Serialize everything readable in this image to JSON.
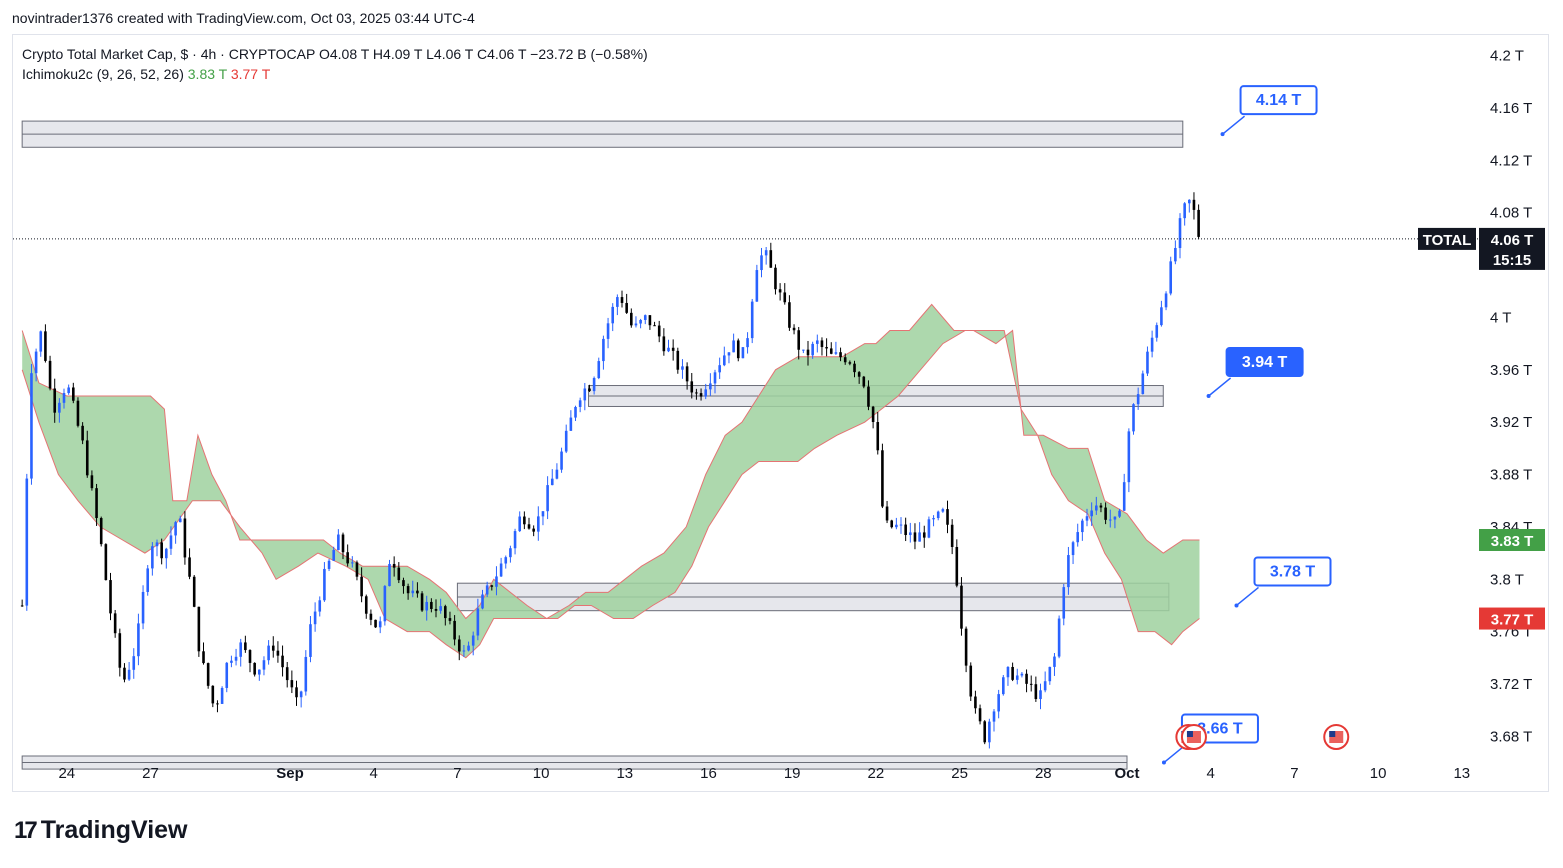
{
  "caption": "novintrader1376 created with TradingView.com, Oct 03, 2025 03:44 UTC-4",
  "legend": {
    "symbol_line": "Crypto Total Market Cap, $ · 4h · CRYPTOCAP",
    "ohlc": "O4.08 T  H4.09 T  L4.06 T  C4.06 T  −23.72 B (−0.58%)",
    "indicator": "Ichimoku2c (9, 26, 52, 26)",
    "indicator_v1": "3.83 T",
    "indicator_v2": "3.77 T"
  },
  "footer": {
    "brand": "TradingView",
    "logo_mark": "17"
  },
  "colors": {
    "up": "#2962ff",
    "down": "#000000",
    "cloud": "#9fd19f",
    "cloud_edge": "#e57373",
    "callout": "#2962ff",
    "zone": "#d1d4dc"
  },
  "chart_data": {
    "type": "candlestick",
    "title": "Crypto Total Market Cap",
    "interval": "4h",
    "y_unit": "T",
    "y_ticks": [
      "4.2 T",
      "4.16 T",
      "4.12 T",
      "4.08 T",
      "4 T",
      "3.96 T",
      "3.92 T",
      "3.88 T",
      "3.84 T",
      "3.8 T",
      "3.76 T",
      "3.72 T",
      "3.68 T"
    ],
    "y_tick_values": [
      4.2,
      4.16,
      4.12,
      4.08,
      4.0,
      3.96,
      3.92,
      3.88,
      3.84,
      3.8,
      3.76,
      3.72,
      3.68
    ],
    "ylim": [
      3.665,
      4.215
    ],
    "x_ticks": [
      {
        "label": "24",
        "day": -8
      },
      {
        "label": "27",
        "day": -5
      },
      {
        "label": "Sep",
        "day": 0
      },
      {
        "label": "4",
        "day": 3
      },
      {
        "label": "7",
        "day": 6
      },
      {
        "label": "10",
        "day": 9
      },
      {
        "label": "13",
        "day": 12
      },
      {
        "label": "16",
        "day": 15
      },
      {
        "label": "19",
        "day": 18
      },
      {
        "label": "22",
        "day": 21
      },
      {
        "label": "25",
        "day": 24
      },
      {
        "label": "28",
        "day": 27
      },
      {
        "label": "Oct",
        "day": 30
      },
      {
        "label": "4",
        "day": 33
      },
      {
        "label": "7",
        "day": 36
      },
      {
        "label": "10",
        "day": 39
      },
      {
        "label": "13",
        "day": 42
      }
    ],
    "price_path": [
      [
        -9.6,
        3.78
      ],
      [
        -9.3,
        3.96
      ],
      [
        -8.9,
        3.99
      ],
      [
        -8.5,
        3.93
      ],
      [
        -8.0,
        3.95
      ],
      [
        -7.4,
        3.9
      ],
      [
        -6.8,
        3.83
      ],
      [
        -6.4,
        3.77
      ],
      [
        -6.0,
        3.72
      ],
      [
        -5.5,
        3.75
      ],
      [
        -5.0,
        3.83
      ],
      [
        -4.5,
        3.82
      ],
      [
        -4.0,
        3.85
      ],
      [
        -3.6,
        3.8
      ],
      [
        -3.2,
        3.74
      ],
      [
        -2.7,
        3.7
      ],
      [
        -2.2,
        3.74
      ],
      [
        -1.8,
        3.75
      ],
      [
        -1.2,
        3.73
      ],
      [
        -0.6,
        3.75
      ],
      [
        -0.2,
        3.73
      ],
      [
        0.3,
        3.7
      ],
      [
        0.7,
        3.76
      ],
      [
        1.2,
        3.8
      ],
      [
        1.7,
        3.83
      ],
      [
        2.2,
        3.81
      ],
      [
        2.7,
        3.78
      ],
      [
        3.2,
        3.76
      ],
      [
        3.6,
        3.82
      ],
      [
        4.2,
        3.79
      ],
      [
        4.8,
        3.78
      ],
      [
        5.3,
        3.78
      ],
      [
        5.8,
        3.76
      ],
      [
        6.3,
        3.74
      ],
      [
        6.8,
        3.78
      ],
      [
        7.3,
        3.8
      ],
      [
        7.8,
        3.82
      ],
      [
        8.3,
        3.85
      ],
      [
        8.8,
        3.84
      ],
      [
        9.3,
        3.87
      ],
      [
        9.8,
        3.9
      ],
      [
        10.3,
        3.94
      ],
      [
        10.8,
        3.95
      ],
      [
        11.3,
        3.99
      ],
      [
        11.8,
        4.02
      ],
      [
        12.3,
        3.99
      ],
      [
        12.8,
        4.0
      ],
      [
        13.4,
        3.98
      ],
      [
        14.0,
        3.96
      ],
      [
        14.6,
        3.94
      ],
      [
        15.2,
        3.96
      ],
      [
        15.8,
        3.98
      ],
      [
        16.3,
        3.97
      ],
      [
        16.7,
        4.04
      ],
      [
        17.0,
        4.05
      ],
      [
        17.5,
        4.02
      ],
      [
        18.0,
        3.99
      ],
      [
        18.4,
        3.97
      ],
      [
        18.9,
        3.98
      ],
      [
        19.4,
        3.97
      ],
      [
        20.0,
        3.97
      ],
      [
        20.6,
        3.95
      ],
      [
        21.0,
        3.91
      ],
      [
        21.3,
        3.84
      ],
      [
        21.8,
        3.84
      ],
      [
        22.4,
        3.83
      ],
      [
        22.9,
        3.84
      ],
      [
        23.4,
        3.85
      ],
      [
        23.8,
        3.82
      ],
      [
        24.1,
        3.76
      ],
      [
        24.5,
        3.7
      ],
      [
        24.9,
        3.68
      ],
      [
        25.3,
        3.71
      ],
      [
        25.8,
        3.73
      ],
      [
        26.4,
        3.72
      ],
      [
        26.9,
        3.71
      ],
      [
        27.4,
        3.74
      ],
      [
        27.8,
        3.81
      ],
      [
        28.3,
        3.84
      ],
      [
        28.8,
        3.86
      ],
      [
        29.2,
        3.85
      ],
      [
        29.7,
        3.84
      ],
      [
        30.1,
        3.92
      ],
      [
        30.6,
        3.96
      ],
      [
        31.1,
        4.0
      ],
      [
        31.6,
        4.04
      ],
      [
        32.0,
        4.08
      ],
      [
        32.3,
        4.09
      ],
      [
        32.6,
        4.06
      ]
    ],
    "cloud_top": [
      [
        -9.6,
        3.99
      ],
      [
        -9.0,
        3.95
      ],
      [
        -8.0,
        3.94
      ],
      [
        -7.0,
        3.94
      ],
      [
        -5.0,
        3.94
      ],
      [
        -4.5,
        3.93
      ],
      [
        -4.2,
        3.86
      ],
      [
        -3.7,
        3.86
      ],
      [
        -3.3,
        3.91
      ],
      [
        -2.8,
        3.88
      ],
      [
        -2.3,
        3.86
      ],
      [
        -1.8,
        3.83
      ],
      [
        -1.0,
        3.83
      ],
      [
        1.2,
        3.83
      ],
      [
        1.8,
        3.82
      ],
      [
        2.6,
        3.81
      ],
      [
        3.4,
        3.81
      ],
      [
        4.2,
        3.81
      ],
      [
        5.0,
        3.8
      ],
      [
        5.6,
        3.79
      ],
      [
        6.3,
        3.77
      ],
      [
        6.8,
        3.78
      ],
      [
        7.3,
        3.8
      ],
      [
        8.5,
        3.78
      ],
      [
        9.2,
        3.77
      ],
      [
        10.0,
        3.78
      ],
      [
        10.6,
        3.79
      ],
      [
        11.4,
        3.79
      ],
      [
        12.0,
        3.8
      ],
      [
        12.6,
        3.81
      ],
      [
        13.4,
        3.82
      ],
      [
        14.2,
        3.84
      ],
      [
        14.9,
        3.88
      ],
      [
        15.6,
        3.91
      ],
      [
        16.2,
        3.92
      ],
      [
        16.8,
        3.94
      ],
      [
        17.4,
        3.96
      ],
      [
        18.2,
        3.97
      ],
      [
        19.0,
        3.97
      ],
      [
        19.8,
        3.97
      ],
      [
        20.6,
        3.98
      ],
      [
        21.0,
        3.98
      ],
      [
        21.5,
        3.99
      ],
      [
        22.2,
        3.99
      ],
      [
        23.0,
        4.01
      ],
      [
        23.8,
        3.99
      ],
      [
        24.5,
        3.99
      ],
      [
        25.3,
        3.98
      ],
      [
        25.9,
        3.99
      ],
      [
        26.3,
        3.91
      ],
      [
        27.0,
        3.91
      ],
      [
        27.9,
        3.9
      ],
      [
        28.6,
        3.9
      ],
      [
        29.2,
        3.86
      ],
      [
        30.0,
        3.85
      ],
      [
        30.7,
        3.83
      ],
      [
        31.3,
        3.82
      ],
      [
        32.0,
        3.83
      ],
      [
        32.6,
        3.83
      ]
    ],
    "cloud_bottom": [
      [
        -9.6,
        3.96
      ],
      [
        -9.0,
        3.92
      ],
      [
        -8.3,
        3.88
      ],
      [
        -7.6,
        3.86
      ],
      [
        -6.8,
        3.84
      ],
      [
        -6.0,
        3.83
      ],
      [
        -5.2,
        3.82
      ],
      [
        -4.5,
        3.83
      ],
      [
        -3.5,
        3.86
      ],
      [
        -2.5,
        3.86
      ],
      [
        -1.8,
        3.84
      ],
      [
        -1.0,
        3.82
      ],
      [
        -0.5,
        3.8
      ],
      [
        0.3,
        3.81
      ],
      [
        1.0,
        3.82
      ],
      [
        2.0,
        3.81
      ],
      [
        2.8,
        3.8
      ],
      [
        3.4,
        3.77
      ],
      [
        4.2,
        3.76
      ],
      [
        5.0,
        3.76
      ],
      [
        5.6,
        3.75
      ],
      [
        6.3,
        3.74
      ],
      [
        6.8,
        3.75
      ],
      [
        7.3,
        3.77
      ],
      [
        8.2,
        3.77
      ],
      [
        8.9,
        3.77
      ],
      [
        9.6,
        3.77
      ],
      [
        10.2,
        3.78
      ],
      [
        10.8,
        3.78
      ],
      [
        11.6,
        3.77
      ],
      [
        12.3,
        3.77
      ],
      [
        13.0,
        3.78
      ],
      [
        13.8,
        3.79
      ],
      [
        14.4,
        3.81
      ],
      [
        15.0,
        3.84
      ],
      [
        15.6,
        3.86
      ],
      [
        16.2,
        3.88
      ],
      [
        16.8,
        3.89
      ],
      [
        17.4,
        3.89
      ],
      [
        18.2,
        3.89
      ],
      [
        18.8,
        3.9
      ],
      [
        19.6,
        3.91
      ],
      [
        20.6,
        3.92
      ],
      [
        21.2,
        3.93
      ],
      [
        21.8,
        3.94
      ],
      [
        22.6,
        3.96
      ],
      [
        23.4,
        3.98
      ],
      [
        24.2,
        3.99
      ],
      [
        25.0,
        3.99
      ],
      [
        25.6,
        3.99
      ],
      [
        26.2,
        3.93
      ],
      [
        26.8,
        3.91
      ],
      [
        27.3,
        3.88
      ],
      [
        27.9,
        3.86
      ],
      [
        28.6,
        3.85
      ],
      [
        29.2,
        3.82
      ],
      [
        29.8,
        3.8
      ],
      [
        30.4,
        3.76
      ],
      [
        31.0,
        3.76
      ],
      [
        31.6,
        3.75
      ],
      [
        32.0,
        3.76
      ],
      [
        32.6,
        3.77
      ]
    ],
    "zones": [
      {
        "y_from": 4.13,
        "y_to": 4.15,
        "day_from": -9.6,
        "day_to": 32.0
      },
      {
        "y_from": 3.932,
        "y_to": 3.948,
        "day_from": 10.7,
        "day_to": 31.3
      },
      {
        "y_from": 3.776,
        "y_to": 3.797,
        "day_from": 6.0,
        "day_to": 31.5
      },
      {
        "y_from": 3.655,
        "y_to": 3.665,
        "day_from": -9.6,
        "day_to": 30.0
      }
    ],
    "callouts": [
      {
        "label": "4.14 T",
        "value": 4.14,
        "style": "outline",
        "day": 34.5
      },
      {
        "label": "3.94 T",
        "value": 3.94,
        "style": "filled",
        "day": 34.0
      },
      {
        "label": "3.78 T",
        "value": 3.78,
        "style": "outline",
        "day": 35.0
      },
      {
        "label": "3.66 T",
        "value": 3.66,
        "style": "outline",
        "day": 32.4
      }
    ],
    "current_price": {
      "symbol": "TOTAL",
      "label": "4.06 T",
      "countdown": "15:15",
      "value": 4.06
    },
    "indicator_tags": [
      {
        "label": "3.83 T",
        "value": 3.83,
        "color": "#43a047"
      },
      {
        "label": "3.77 T",
        "value": 3.77,
        "color": "#e53935"
      }
    ],
    "event_icons": [
      {
        "name": "us-flag-icon",
        "day": 32.2
      },
      {
        "name": "us-flag-icon",
        "day": 32.4
      },
      {
        "name": "us-flag-icon",
        "day": 37.5
      }
    ],
    "grid": false,
    "legend_placement": "top-left"
  }
}
